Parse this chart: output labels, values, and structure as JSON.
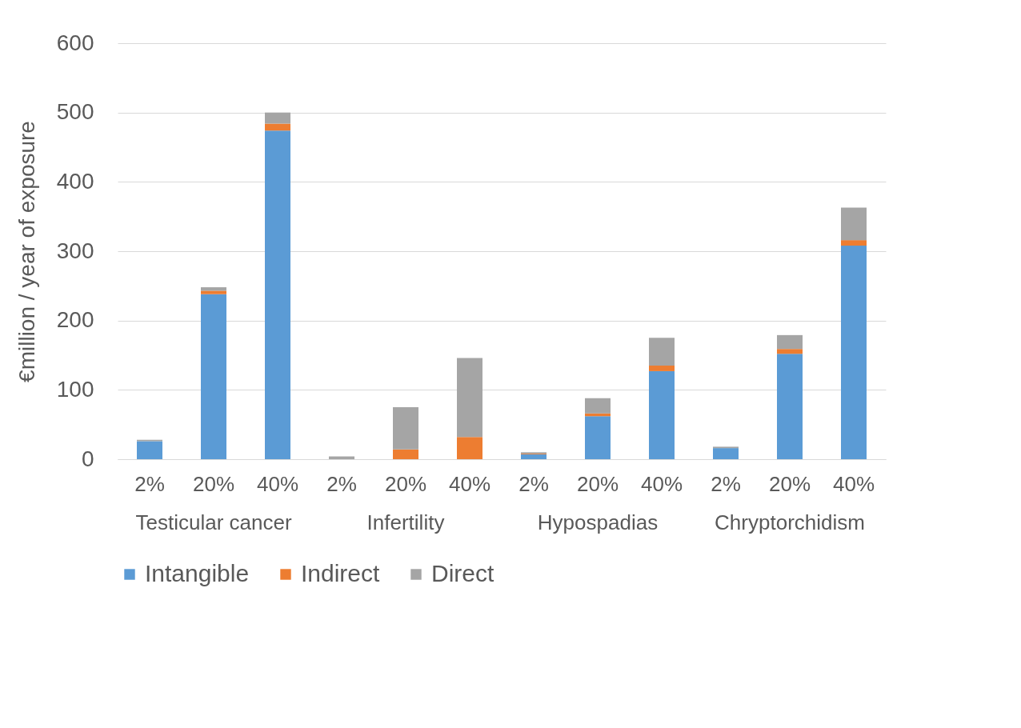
{
  "chart_data": {
    "type": "bar",
    "stacked": true,
    "ylabel": "€million / year of exposure",
    "categories": [
      "2%",
      "20%",
      "40%",
      "2%",
      "20%",
      "40%",
      "2%",
      "20%",
      "40%",
      "2%",
      "20%",
      "40%"
    ],
    "annotations": [
      "Testicular cancer",
      "Infertility",
      "Hypospadias",
      "Chryptorchidism"
    ],
    "series": [
      {
        "name": "Intangible",
        "color": "#5b9bd5",
        "values": [
          26,
          238,
          474,
          0,
          0,
          0,
          7,
          62,
          127,
          16,
          152,
          308
        ]
      },
      {
        "name": "Indirect",
        "color": "#ed7d31",
        "values": [
          null,
          5,
          10,
          null,
          14,
          32,
          1,
          4,
          8,
          0,
          7,
          8
        ]
      },
      {
        "name": "Direct",
        "color": "#a5a5a5",
        "values": [
          2,
          5,
          16,
          4,
          61,
          114,
          2,
          22,
          40,
          2,
          20,
          47
        ]
      }
    ],
    "ylim": [
      0,
      600
    ],
    "yticks": [
      0,
      100,
      200,
      300,
      400,
      500,
      600
    ],
    "grid": "y",
    "legend": "bottom"
  }
}
